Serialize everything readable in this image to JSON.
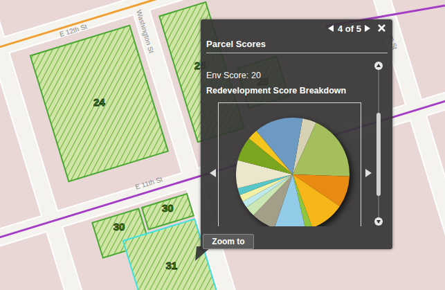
{
  "map": {
    "streets": [
      "E 12th St",
      "Washington St",
      "E 11th St",
      "m St"
    ],
    "parcels": [
      24,
      25,
      25,
      30,
      30,
      31
    ]
  },
  "popup": {
    "pager": "4 of 5",
    "title": "Parcel Scores",
    "env_label": "Env Score:",
    "env_value": 20,
    "heading": "Redevelopment Score Breakdown",
    "button": "Zoom to"
  },
  "chart_data": {
    "type": "pie",
    "values": [
      4,
      19,
      9,
      10,
      2,
      9,
      7,
      3,
      2,
      2,
      2,
      8,
      7,
      3,
      14
    ],
    "colors": [
      "#d8d2b4",
      "#a4bf5c",
      "#e98a13",
      "#f7b718",
      "#8ec63f",
      "#92cbe8",
      "#a39e88",
      "#cbe8b4",
      "#bfe9ea",
      "#f2f1a6",
      "#56c6c9",
      "#ebe7cc",
      "#7aa51f",
      "#f4c51c",
      "#6d9ac2"
    ]
  }
}
